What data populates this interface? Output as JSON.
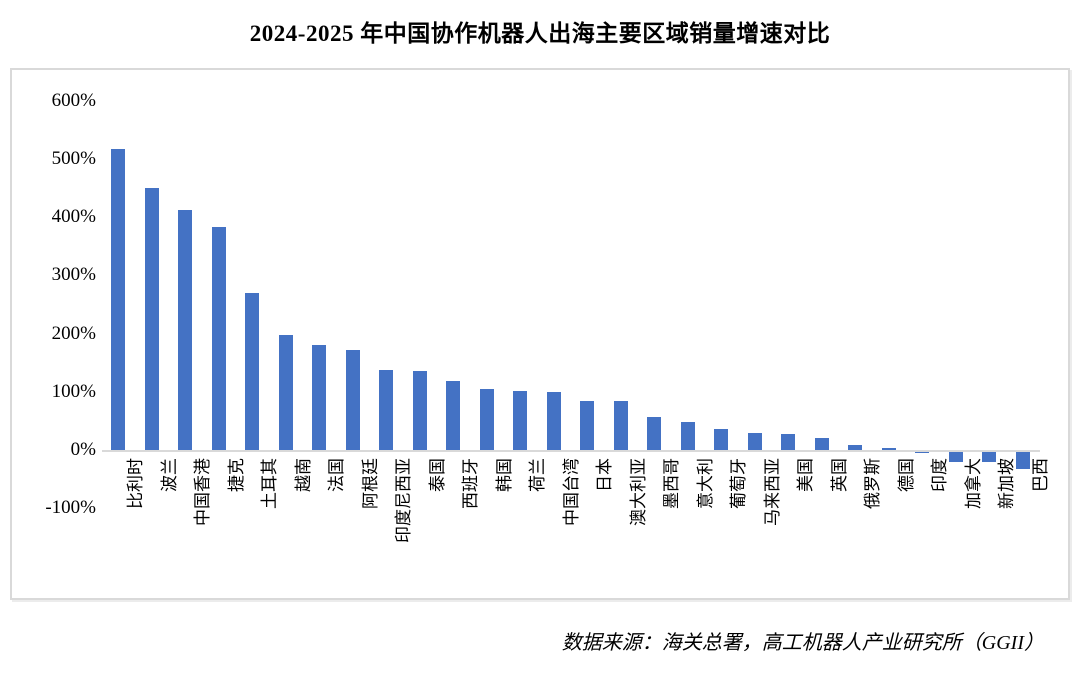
{
  "title": "2024-2025 年中国协作机器人出海主要区域销量增速对比",
  "source_note": "数据来源：海关总署，高工机器人产业研究所（GGII）",
  "colors": {
    "bar": "#4472C4",
    "axis": "#D9D9D9",
    "frame_border": "#D9D9D9",
    "text": "#000000"
  },
  "chart_data": {
    "type": "bar",
    "title": "2024-2025 年中国协作机器人出海主要区域销量增速对比",
    "xlabel": "",
    "ylabel": "",
    "unit": "%",
    "ylim": [
      -100,
      600
    ],
    "grid": false,
    "legend": "none",
    "y_ticks": [
      {
        "label": "600%",
        "value": 600
      },
      {
        "label": "500%",
        "value": 500
      },
      {
        "label": "400%",
        "value": 400
      },
      {
        "label": "300%",
        "value": 300
      },
      {
        "label": "200%",
        "value": 200
      },
      {
        "label": "100%",
        "value": 100
      },
      {
        "label": "0%",
        "value": 0
      },
      {
        "label": "-100%",
        "value": -100
      }
    ],
    "categories": [
      "比利时",
      "波兰",
      "中国香港",
      "捷克",
      "土耳其",
      "越南",
      "法国",
      "阿根廷",
      "印度尼西亚",
      "泰国",
      "西班牙",
      "韩国",
      "荷兰",
      "中国台湾",
      "日本",
      "澳大利亚",
      "墨西哥",
      "意大利",
      "葡萄牙",
      "马来西亚",
      "美国",
      "英国",
      "俄罗斯",
      "德国",
      "印度",
      "加拿大",
      "新加坡",
      "巴西"
    ],
    "values": [
      518,
      450,
      412,
      384,
      270,
      198,
      180,
      172,
      138,
      136,
      118,
      104,
      102,
      100,
      85,
      84,
      56,
      48,
      36,
      30,
      28,
      20,
      8,
      4,
      -2,
      -18,
      -18,
      -30
    ]
  }
}
